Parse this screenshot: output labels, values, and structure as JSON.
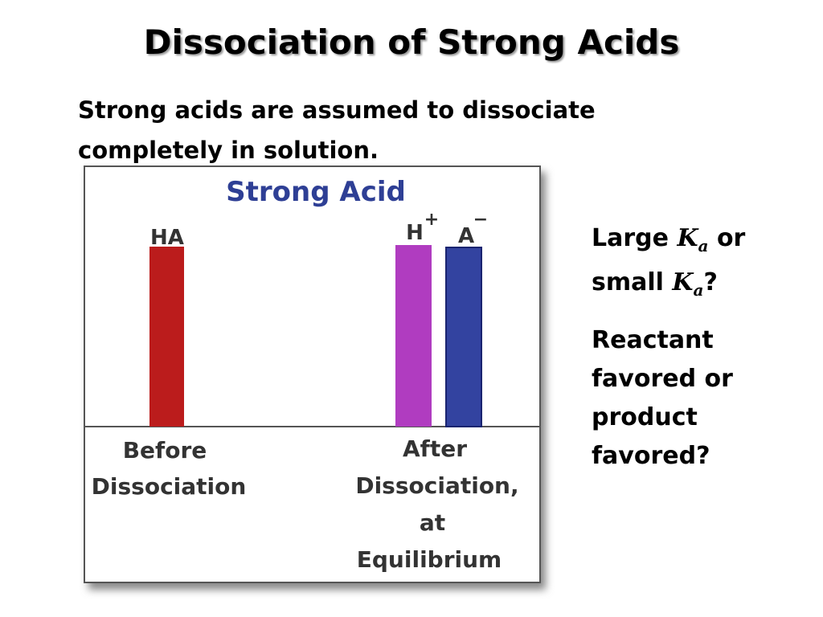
{
  "header": {
    "title": "Dissociation of Strong Acids"
  },
  "intro": {
    "lines": [
      "Strong acids are assumed to dissociate",
      "completely in solution."
    ]
  },
  "figure": {
    "title": "Strong Acid",
    "bar_labels": {
      "ha": "HA",
      "h": "H",
      "h_charge": "+",
      "a": "A",
      "a_charge": "−"
    },
    "before": [
      "Before",
      "Dissociation"
    ],
    "after": [
      "After",
      "Dissociation,",
      "at",
      "Equilibrium"
    ]
  },
  "sidebar": {
    "question1": {
      "large": "Large",
      "k1": "K",
      "sub1": "a",
      "or": "or",
      "small": "small",
      "k2": "K",
      "sub2": "a",
      "q": "?"
    },
    "question2": [
      "Reactant",
      "favored or",
      "product",
      "favored?"
    ]
  }
}
